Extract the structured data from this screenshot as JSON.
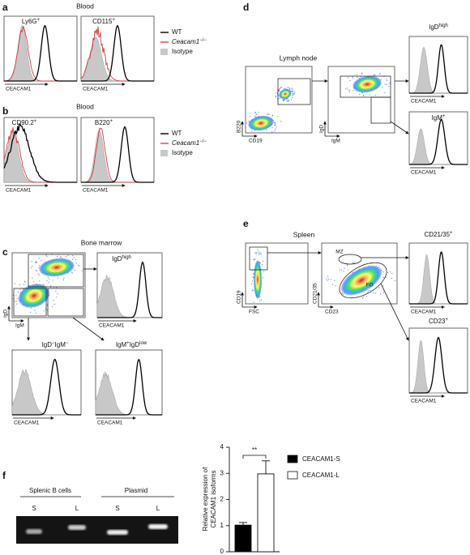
{
  "panels": {
    "a": {
      "letter": "a",
      "title": "Blood",
      "hist_labels": [
        [
          "Ly6G",
          "+"
        ],
        [
          "CD115",
          "+"
        ]
      ],
      "x_label": "CEACAM1",
      "legend": [
        [
          "WT"
        ],
        [
          "Ceacam1",
          "−/−"
        ],
        [
          "Isotype"
        ]
      ]
    },
    "b": {
      "letter": "b",
      "title": "Blood",
      "hist_labels": [
        [
          "CD90.2",
          "+"
        ],
        [
          "B220",
          "+"
        ]
      ],
      "x_label": "CEACAM1",
      "legend": [
        [
          "WT"
        ],
        [
          "Ceacam1",
          "−/−"
        ],
        [
          "Isotype"
        ]
      ]
    },
    "c": {
      "letter": "c",
      "title": "Bone marrow",
      "dots": [
        {
          "x": "IgM",
          "y": "IgD"
        }
      ],
      "hist_labels": [
        [
          "IgD",
          "high"
        ],
        [
          "IgD",
          "−",
          "IgM",
          "−"
        ],
        [
          "IgM",
          "+",
          "IgD",
          "low"
        ]
      ],
      "x_label": "CEACAM1"
    },
    "d": {
      "letter": "d",
      "title": "Lymph node",
      "dots": [
        {
          "x": "CD19",
          "y": "B220"
        },
        {
          "x": "IgM",
          "y": "IgD"
        }
      ],
      "hist_labels": [
        [
          "IgD",
          "high"
        ],
        [
          "IgM",
          "+"
        ]
      ],
      "x_label": "CEACAM1"
    },
    "e": {
      "letter": "e",
      "title": "Spleen",
      "dots": [
        {
          "x": "FSC",
          "y": "CD19"
        },
        {
          "x": "CD23",
          "y": "CD21/35"
        }
      ],
      "gates": [
        "MZ",
        "FO"
      ],
      "hist_labels": [
        [
          "CD21/35",
          "+"
        ],
        [
          "CD23",
          "+"
        ]
      ],
      "x_label": "CEACAM1"
    },
    "f": {
      "letter": "f",
      "gel_groups": [
        "Splenic B cells",
        "Plasmid"
      ],
      "lanes": [
        "S",
        "L",
        "S",
        "L"
      ]
    }
  },
  "chart_data": {
    "type": "bar",
    "categories": [
      null
    ],
    "series": [
      {
        "name": "CEACAM1-S",
        "color": "#000000",
        "values": [
          1.02
        ],
        "errors": [
          0.1
        ]
      },
      {
        "name": "CEACAM1-L",
        "color": "#ffffff",
        "values": [
          2.98
        ],
        "errors": [
          0.5
        ]
      }
    ],
    "y_label": [
      "Relative expression of",
      "CEACAM1 isoforms"
    ],
    "annotation": "**",
    "ylim": [
      0,
      4
    ],
    "yticks": [
      0,
      1,
      2,
      3,
      4
    ]
  }
}
